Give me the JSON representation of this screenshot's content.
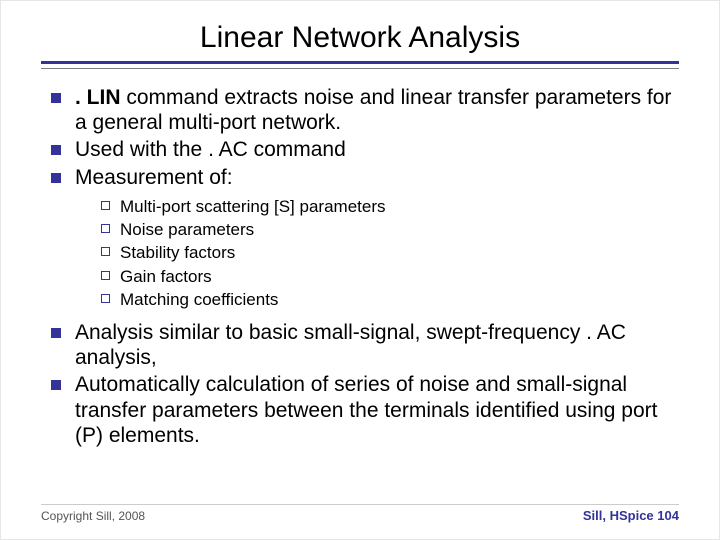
{
  "title": "Linear Network Analysis",
  "colors": {
    "accent": "#333399",
    "text": "#000000",
    "background": "#ffffff",
    "rule_gray": "#808080"
  },
  "typography": {
    "title_fontsize": 30,
    "l1_fontsize": 21,
    "l2_fontsize": 17,
    "footer_fontsize": 12
  },
  "bullets": [
    {
      "bold_lead": ". LIN",
      "rest": " command extracts noise and linear transfer parameters for a general multi-port network."
    },
    {
      "text": "Used with the . AC command"
    },
    {
      "text": "Measurement of:"
    }
  ],
  "sub_bullets": [
    "Multi-port scattering [S] parameters",
    "Noise parameters",
    "Stability factors",
    "Gain factors",
    "Matching coefficients"
  ],
  "bullets2": [
    "Analysis similar to basic small-signal, swept-frequency . AC analysis,",
    "Automatically calculation of series of noise and small-signal transfer parameters between the terminals identified using port (P) elements."
  ],
  "footer": {
    "copyright": "Copyright Sill, 2008",
    "right_label": "Sill, HSpice",
    "page_number": "104"
  }
}
